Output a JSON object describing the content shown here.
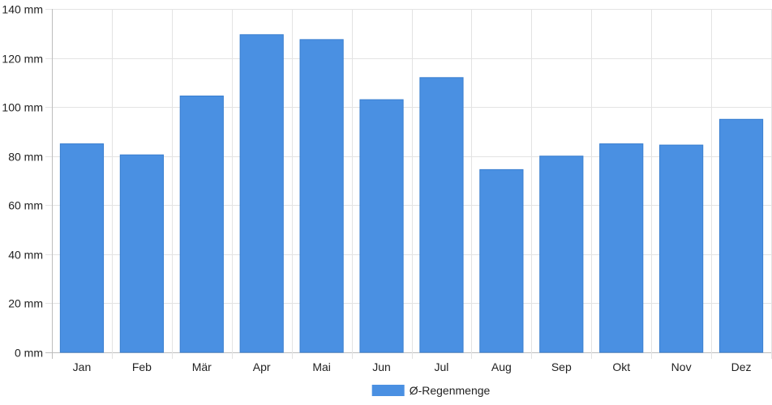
{
  "chart_data": {
    "type": "bar",
    "title": "",
    "xlabel": "",
    "ylabel": "",
    "categories": [
      "Jan",
      "Feb",
      "Mär",
      "Apr",
      "Mai",
      "Jun",
      "Jul",
      "Aug",
      "Sep",
      "Okt",
      "Nov",
      "Dez"
    ],
    "series": [
      {
        "name": "Ø-Regenmenge",
        "color": "#4a90e2",
        "values": [
          85,
          80.5,
          104.5,
          129.5,
          127.5,
          103,
          112,
          74.5,
          80,
          85,
          84.5,
          95
        ]
      }
    ],
    "ylim": [
      0,
      140
    ],
    "y_ticks": [
      0,
      20,
      40,
      60,
      80,
      100,
      120,
      140
    ],
    "y_tick_labels": [
      "0 mm",
      "20 mm",
      "40 mm",
      "60 mm",
      "80 mm",
      "100 mm",
      "120 mm",
      "140 mm"
    ],
    "grid": true,
    "legend_position": "bottom-center"
  }
}
